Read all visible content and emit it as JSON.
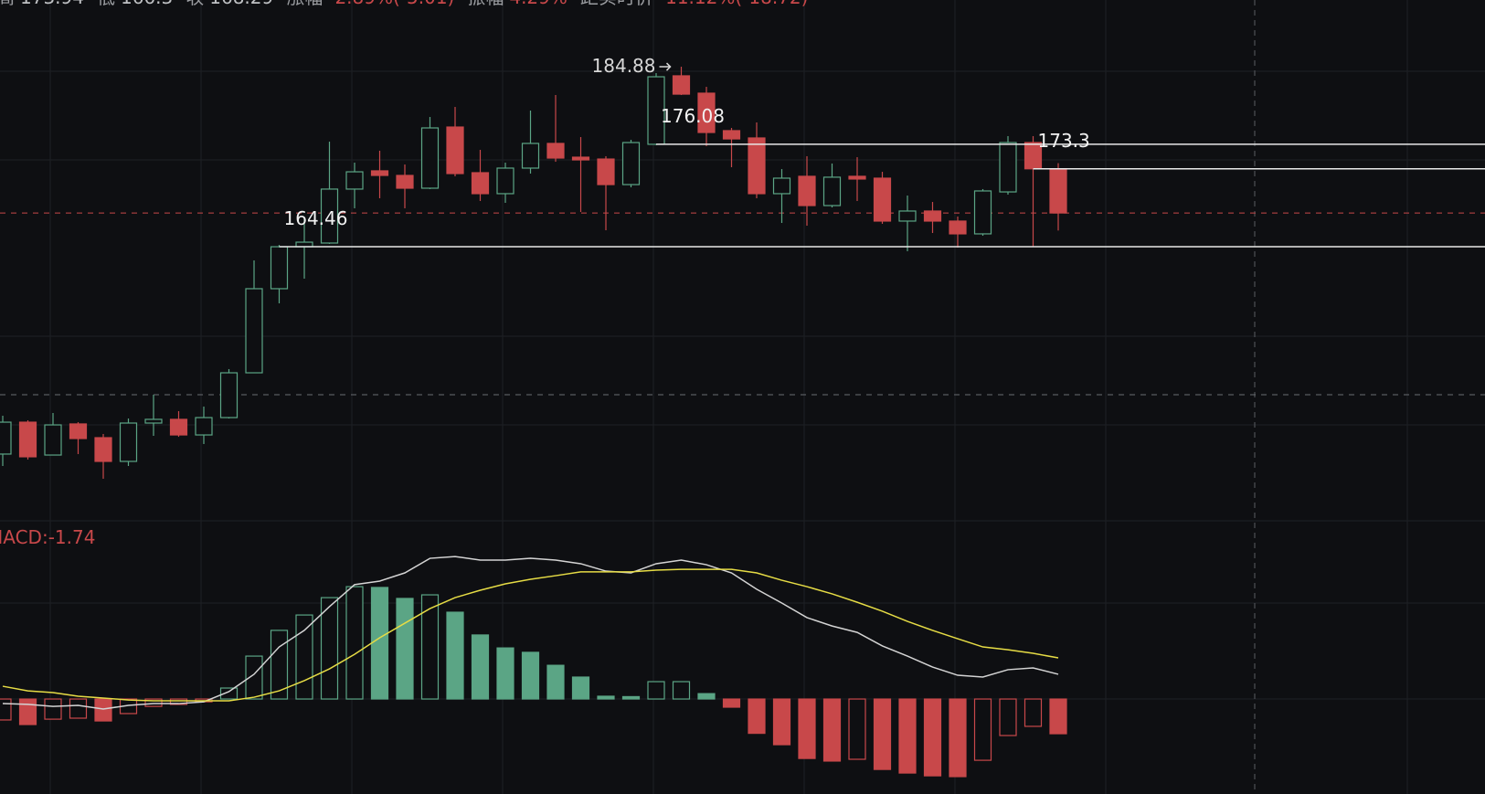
{
  "chart_data": {
    "type": "candlestick",
    "info": {
      "labels": [
        "高",
        "低",
        "收",
        "涨幅",
        "振幅",
        "距实时价"
      ],
      "change": "-2.89%(-5.01)",
      "amplitude": "4.29%",
      "distance": "-11.12%(-18.72)"
    },
    "ylim": [
      133.37,
      192.45
    ],
    "open": [
      140.94,
      144.56,
      140.83,
      144.36,
      142.8,
      140.11,
      144.46,
      144.88,
      143.11,
      145.08,
      150.16,
      159.7,
      164.46,
      164.88,
      171.0,
      173.07,
      172.55,
      171.1,
      178.04,
      172.86,
      170.48,
      173.38,
      176.18,
      174.62,
      174.41,
      171.51,
      176.08,
      183.85,
      181.88,
      177.63,
      176.8,
      170.48,
      172.45,
      169.13,
      172.45,
      172.24,
      167.37,
      168.51,
      167.37,
      165.92,
      170.68,
      176.28,
      173.3
    ],
    "high": [
      145.29,
      144.77,
      145.6,
      144.56,
      143.22,
      144.98,
      147.67,
      145.81,
      146.33,
      150.58,
      162.91,
      164.67,
      167.57,
      176.38,
      174.0,
      175.35,
      173.79,
      179.18,
      180.32,
      175.45,
      174.0,
      179.91,
      181.67,
      176.9,
      174.73,
      176.59,
      184.16,
      184.88,
      182.6,
      177.94,
      178.56,
      173.27,
      174.73,
      173.9,
      174.62,
      172.96,
      170.27,
      169.54,
      167.89,
      171.0,
      177.01,
      177.01,
      173.94
    ],
    "low": [
      139.59,
      140.32,
      140.83,
      140.94,
      138.14,
      139.59,
      143.01,
      142.9,
      142.08,
      144.98,
      150.16,
      158.04,
      160.84,
      164.78,
      168.82,
      169.96,
      168.82,
      171.0,
      172.45,
      169.65,
      169.44,
      172.76,
      174.1,
      168.4,
      166.33,
      171.2,
      175.98,
      181.67,
      175.87,
      173.48,
      169.96,
      167.16,
      166.85,
      168.92,
      169.65,
      167.06,
      163.95,
      166.02,
      164.36,
      165.71,
      170.37,
      164.5,
      166.3
    ],
    "close": [
      144.56,
      140.63,
      144.25,
      142.7,
      140.11,
      144.46,
      144.88,
      143.11,
      145.08,
      150.16,
      159.7,
      164.46,
      164.98,
      171.0,
      172.96,
      172.55,
      171.1,
      177.94,
      172.76,
      170.48,
      173.38,
      176.18,
      174.52,
      174.31,
      171.51,
      176.28,
      183.74,
      181.77,
      177.42,
      176.69,
      170.48,
      172.24,
      169.13,
      172.35,
      172.14,
      167.37,
      168.51,
      167.37,
      165.92,
      170.79,
      176.28,
      173.3,
      168.29
    ],
    "up_color": "#5ba585",
    "down_color": "#c8484a",
    "levels": [
      164.46,
      176.08,
      173.3
    ],
    "reference_line": 147.67,
    "macd": {
      "type": "macd",
      "label": "MACD:",
      "ylim": [
        -4.76,
        8.93
      ],
      "hist": [
        -1.05,
        -1.28,
        -1.01,
        -0.96,
        -1.1,
        -0.73,
        -0.37,
        -0.27,
        -0.14,
        0.55,
        2.15,
        3.44,
        4.21,
        5.08,
        5.63,
        5.59,
        5.04,
        5.22,
        4.35,
        3.21,
        2.56,
        2.34,
        1.69,
        1.1,
        0.14,
        0.12,
        0.87,
        0.87,
        0.27,
        -0.41,
        -1.72,
        -2.29,
        -2.98,
        -3.11,
        -3.02,
        -3.53,
        -3.71,
        -3.85,
        -3.89,
        -3.07,
        -1.83,
        -1.37,
        -1.74
      ],
      "dif": [
        -0.23,
        -0.27,
        -0.37,
        -0.32,
        -0.5,
        -0.32,
        -0.23,
        -0.23,
        -0.14,
        0.37,
        1.24,
        2.61,
        3.44,
        4.63,
        5.73,
        5.91,
        6.32,
        7.05,
        7.14,
        6.96,
        6.96,
        7.05,
        6.96,
        6.78,
        6.41,
        6.32,
        6.78,
        6.96,
        6.73,
        6.32,
        5.5,
        4.81,
        4.08,
        3.66,
        3.34,
        2.66,
        2.15,
        1.6,
        1.19,
        1.1,
        1.47,
        1.56,
        1.24
      ],
      "dea": [
        0.64,
        0.41,
        0.32,
        0.14,
        0.05,
        -0.05,
        -0.09,
        -0.09,
        -0.09,
        -0.09,
        0.09,
        0.41,
        0.92,
        1.51,
        2.24,
        3.07,
        3.8,
        4.53,
        5.08,
        5.45,
        5.77,
        6.0,
        6.18,
        6.37,
        6.37,
        6.37,
        6.46,
        6.5,
        6.5,
        6.5,
        6.32,
        5.95,
        5.63,
        5.27,
        4.85,
        4.4,
        3.89,
        3.44,
        3.02,
        2.61,
        2.47,
        2.29,
        2.06
      ],
      "dif_color": "#d4d4d4",
      "dea_color": "#e6dc45"
    }
  }
}
